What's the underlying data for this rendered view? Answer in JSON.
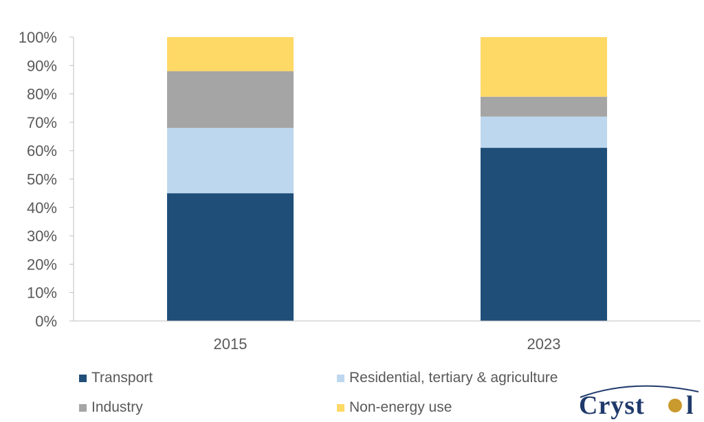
{
  "chart_data": {
    "type": "bar",
    "stacked": true,
    "categories": [
      "2015",
      "2023"
    ],
    "series": [
      {
        "name": "Transport",
        "values": [
          45,
          61
        ],
        "color": "#1f4e79"
      },
      {
        "name": "Residential, tertiary & agriculture",
        "values": [
          23,
          11
        ],
        "color": "#bdd7ee"
      },
      {
        "name": "Industry",
        "values": [
          20,
          7
        ],
        "color": "#a5a5a5"
      },
      {
        "name": "Non-energy use",
        "values": [
          12,
          21
        ],
        "color": "#ffd966"
      }
    ],
    "ylim": [
      0,
      100
    ],
    "yticks": [
      "0%",
      "10%",
      "20%",
      "30%",
      "40%",
      "50%",
      "60%",
      "70%",
      "80%",
      "90%",
      "100%"
    ],
    "title": "",
    "xlabel": "",
    "ylabel": "",
    "grid": false,
    "legend_position": "bottom"
  },
  "logo": {
    "text": "Cryst",
    "suffix": "l"
  }
}
